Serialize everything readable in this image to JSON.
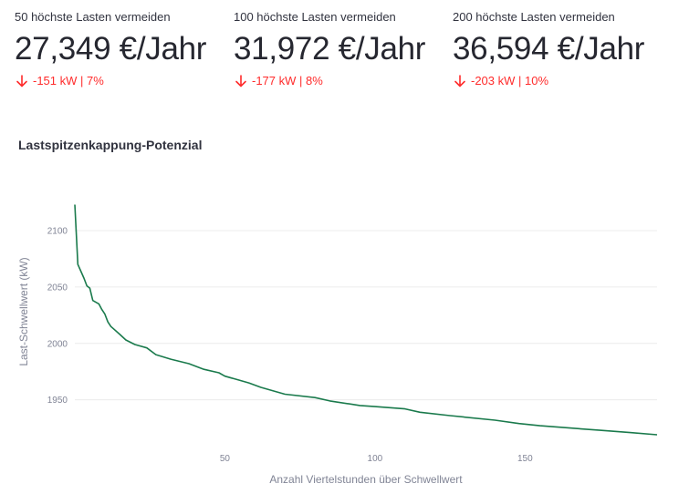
{
  "metrics": [
    {
      "label": "50 höchste Lasten vermeiden",
      "value": "27,349 €/Jahr",
      "delta": "-151 kW | 7%",
      "delta_icon": "arrow-down-icon"
    },
    {
      "label": "100 höchste Lasten vermeiden",
      "value": "31,972 €/Jahr",
      "delta": "-177 kW | 8%",
      "delta_icon": "arrow-down-icon"
    },
    {
      "label": "200 höchste Lasten vermeiden",
      "value": "36,594 €/Jahr",
      "delta": "-203 kW | 10%",
      "delta_icon": "arrow-down-icon"
    }
  ],
  "colors": {
    "delta_negative": "#ff2b2b",
    "line": "#1a7a4c",
    "grid": "#ececec"
  },
  "chart_data": {
    "type": "line",
    "title": "Lastspitzenkappung-Potenzial",
    "xlabel": "Anzahl Viertelstunden über Schwellwert",
    "ylabel": "Last-Schwellwert (kW)",
    "xlim": [
      0,
      194
    ],
    "ylim": [
      1915,
      2125
    ],
    "xticks": [
      50,
      100,
      150
    ],
    "yticks": [
      1950,
      2000,
      2050,
      2100
    ],
    "grid": true,
    "series": [
      {
        "x": [
          0,
          1,
          3,
          4,
          5,
          6,
          8,
          9,
          10,
          11,
          12,
          15,
          17,
          20,
          24,
          27,
          32,
          38,
          43,
          48,
          50,
          54,
          58,
          62,
          70,
          80,
          85,
          95,
          100,
          110,
          115,
          125,
          140,
          148,
          155,
          165,
          175,
          185,
          194
        ],
        "y": [
          2123,
          2070,
          2058,
          2051,
          2049,
          2038,
          2035,
          2030,
          2026,
          2019,
          2015,
          2008,
          2003,
          1999,
          1996,
          1990,
          1986,
          1982,
          1977,
          1974,
          1971,
          1968,
          1965,
          1961,
          1955,
          1952,
          1949,
          1945,
          1944,
          1942,
          1939,
          1936,
          1932,
          1929,
          1927,
          1925,
          1923,
          1921,
          1919
        ]
      }
    ]
  }
}
